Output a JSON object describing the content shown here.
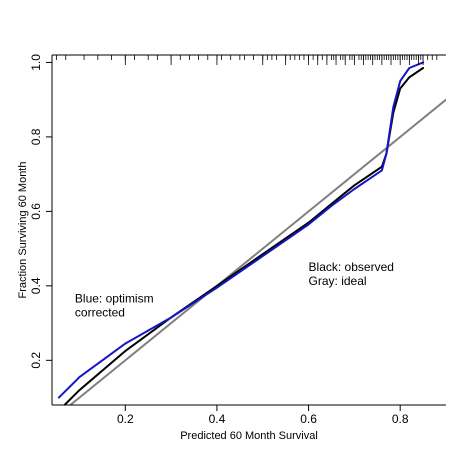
{
  "chart_data": {
    "type": "line",
    "xlabel": "Predicted  60 Month Survival",
    "ylabel": "Fraction Surviving 60 Month",
    "xlim": [
      0.04,
      0.9
    ],
    "ylim": [
      0.08,
      1.02
    ],
    "xticks": [
      0.2,
      0.4,
      0.6,
      0.8
    ],
    "yticks": [
      0.2,
      0.4,
      0.6,
      0.8,
      1.0
    ],
    "xtick_labels": [
      "0.2",
      "0.4",
      "0.6",
      "0.8"
    ],
    "ytick_labels": [
      "0.2",
      "0.4",
      "0.6",
      "0.8",
      "1.0"
    ],
    "grid": false,
    "box": "left-bottom-top",
    "annotations": [
      {
        "lines": [
          "Black: observed",
          "Gray: ideal"
        ],
        "x": 0.6,
        "y": 0.44
      },
      {
        "lines": [
          "Blue: optimism",
          "corrected"
        ],
        "x": 0.09,
        "y": 0.355
      }
    ],
    "series": [
      {
        "color": "#808080",
        "width": 2,
        "x": [
          0.04,
          0.9
        ],
        "y": [
          0.04,
          0.9
        ]
      },
      {
        "color": "#000000",
        "width": 2,
        "x": [
          0.055,
          0.1,
          0.2,
          0.3,
          0.4,
          0.5,
          0.6,
          0.65,
          0.7,
          0.76,
          0.77,
          0.785,
          0.8,
          0.82,
          0.85
        ],
        "y": [
          0.065,
          0.12,
          0.225,
          0.315,
          0.4,
          0.485,
          0.57,
          0.62,
          0.67,
          0.72,
          0.755,
          0.865,
          0.93,
          0.96,
          0.985
        ]
      },
      {
        "color": "#1515c8",
        "width": 2,
        "x": [
          0.055,
          0.1,
          0.2,
          0.3,
          0.4,
          0.5,
          0.6,
          0.65,
          0.7,
          0.76,
          0.77,
          0.785,
          0.8,
          0.82,
          0.85
        ],
        "y": [
          0.1,
          0.155,
          0.245,
          0.315,
          0.395,
          0.48,
          0.565,
          0.615,
          0.66,
          0.71,
          0.755,
          0.88,
          0.95,
          0.985,
          1.0
        ]
      }
    ],
    "rug_x": [
      0.05,
      0.07,
      0.11,
      0.14,
      0.17,
      0.2,
      0.22,
      0.25,
      0.27,
      0.3,
      0.32,
      0.34,
      0.36,
      0.38,
      0.4,
      0.41,
      0.43,
      0.45,
      0.46,
      0.48,
      0.5,
      0.51,
      0.52,
      0.53,
      0.55,
      0.56,
      0.57,
      0.58,
      0.59,
      0.6,
      0.61,
      0.62,
      0.63,
      0.64,
      0.65,
      0.655,
      0.66,
      0.67,
      0.675,
      0.68,
      0.69,
      0.695,
      0.7,
      0.71,
      0.715,
      0.72,
      0.725,
      0.73,
      0.735,
      0.74,
      0.745,
      0.75,
      0.755,
      0.76,
      0.765,
      0.77,
      0.775,
      0.78,
      0.785,
      0.79,
      0.795,
      0.8,
      0.805,
      0.81,
      0.815,
      0.82,
      0.825,
      0.83,
      0.835,
      0.84,
      0.845,
      0.85,
      0.86,
      0.87,
      0.88
    ],
    "rug_long_x": [
      0.2,
      0.3,
      0.4,
      0.5,
      0.55,
      0.6,
      0.62,
      0.64,
      0.66,
      0.68,
      0.7,
      0.72,
      0.74,
      0.76,
      0.78,
      0.8,
      0.82,
      0.84,
      0.85
    ]
  }
}
